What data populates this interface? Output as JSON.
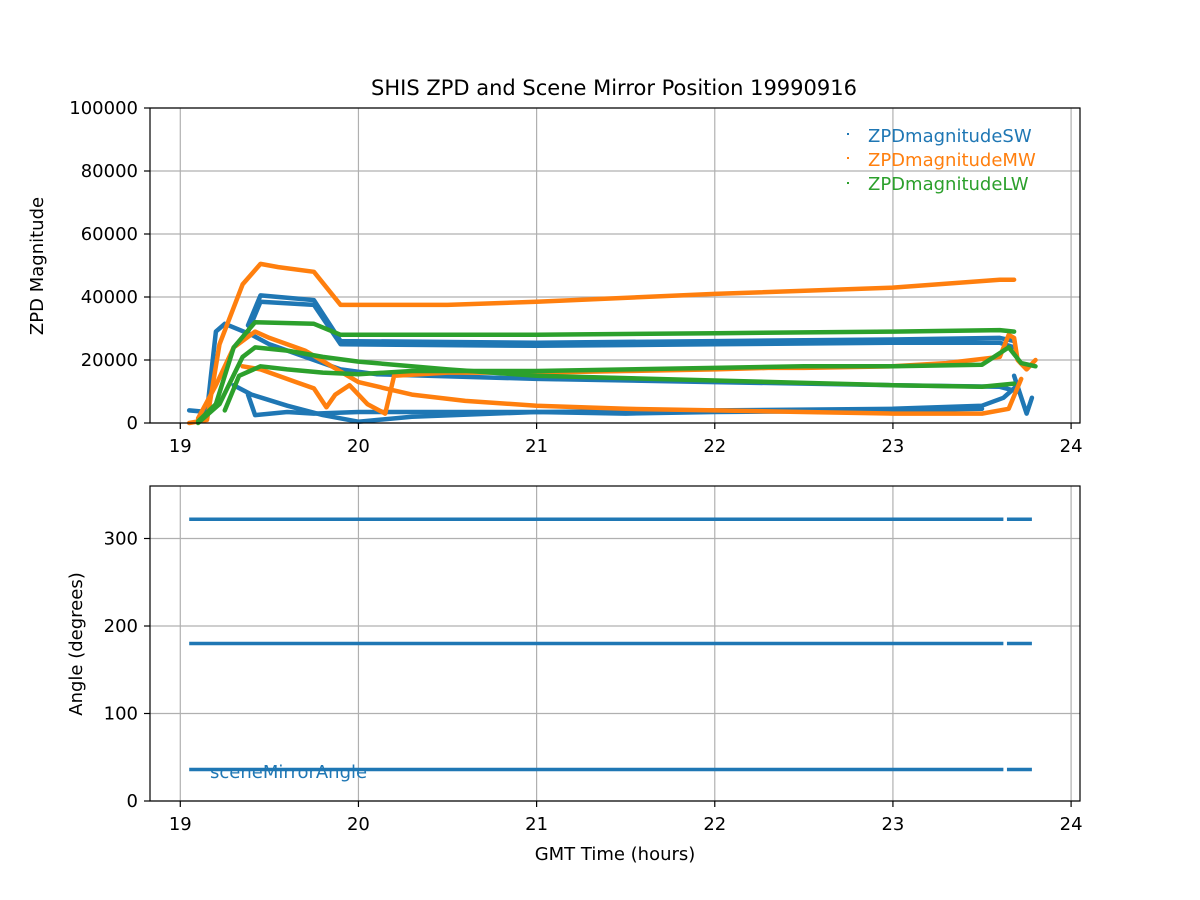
{
  "figure": {
    "title": "SHIS ZPD and Scene Mirror Position 19990916"
  },
  "colors": {
    "sw": "#1f77b4",
    "mw": "#ff7f0e",
    "lw": "#2ca02c",
    "grid": "#b0b0b0",
    "axis": "#000000"
  },
  "chart_data": [
    {
      "type": "scatter",
      "title": "SHIS ZPD and Scene Mirror Position 19990916",
      "xlabel": "",
      "ylabel": "ZPD Magnitude",
      "xlim": [
        18.83,
        24.05
      ],
      "ylim": [
        0,
        100000
      ],
      "xticks": [
        "19",
        "20",
        "21",
        "22",
        "23",
        "24"
      ],
      "yticks": [
        "0",
        "20000",
        "40000",
        "60000",
        "80000",
        "100000"
      ],
      "grid": true,
      "legend_position": "top-right",
      "series": [
        {
          "name": "ZPDmagnitudeSW",
          "color": "#1f77b4",
          "bands": [
            [
              [
                19.05,
                4000
              ],
              [
                19.15,
                3500
              ],
              [
                19.17,
                14000
              ],
              [
                19.2,
                29000
              ],
              [
                19.25,
                31500
              ],
              [
                19.4,
                28000
              ],
              [
                19.5,
                25000
              ],
              [
                19.75,
                20000
              ],
              [
                19.9,
                17000
              ],
              [
                20.1,
                15500
              ],
              [
                21.0,
                14000
              ],
              [
                22.0,
                13000
              ],
              [
                23.0,
                12000
              ],
              [
                23.6,
                11500
              ],
              [
                23.7,
                10000
              ]
            ],
            [
              [
                19.38,
                31000
              ],
              [
                19.45,
                40500
              ],
              [
                19.75,
                39000
              ],
              [
                19.9,
                26000
              ],
              [
                21.0,
                25500
              ],
              [
                22.0,
                26000
              ],
              [
                23.0,
                26500
              ],
              [
                23.6,
                27000
              ],
              [
                23.68,
                26000
              ]
            ],
            [
              [
                19.38,
                29000
              ],
              [
                19.45,
                38500
              ],
              [
                19.75,
                37500
              ],
              [
                19.9,
                25000
              ],
              [
                21.0,
                24500
              ],
              [
                22.0,
                25000
              ],
              [
                23.0,
                25500
              ],
              [
                23.6,
                25500
              ],
              [
                23.68,
                24000
              ]
            ],
            [
              [
                19.38,
                9000
              ],
              [
                19.42,
                2500
              ],
              [
                19.6,
                3500
              ],
              [
                19.75,
                3000
              ],
              [
                20.0,
                3500
              ],
              [
                21.0,
                3500
              ],
              [
                22.0,
                4000
              ],
              [
                23.0,
                4500
              ],
              [
                23.5,
                5500
              ],
              [
                23.62,
                8000
              ],
              [
                23.7,
                12000
              ]
            ],
            [
              [
                19.3,
                12000
              ],
              [
                19.4,
                9000
              ],
              [
                19.6,
                5500
              ],
              [
                19.8,
                2500
              ],
              [
                20.0,
                400
              ],
              [
                20.3,
                2000
              ],
              [
                21.0,
                3500
              ],
              [
                21.5,
                3000
              ],
              [
                22.0,
                3500
              ],
              [
                23.0,
                4000
              ],
              [
                23.5,
                4500
              ]
            ],
            [
              [
                23.68,
                15000
              ],
              [
                23.75,
                3000
              ],
              [
                23.78,
                8000
              ]
            ]
          ]
        },
        {
          "name": "ZPDmagnitudeMW",
          "color": "#ff7f0e",
          "bands": [
            [
              [
                19.05,
                0
              ],
              [
                19.15,
                1000
              ],
              [
                19.22,
                25000
              ],
              [
                19.35,
                44000
              ],
              [
                19.45,
                50500
              ],
              [
                19.55,
                49500
              ],
              [
                19.75,
                48000
              ],
              [
                19.9,
                37500
              ],
              [
                20.5,
                37500
              ],
              [
                21.0,
                38500
              ],
              [
                22.0,
                41000
              ],
              [
                23.0,
                43000
              ],
              [
                23.6,
                45500
              ],
              [
                23.68,
                45500
              ]
            ],
            [
              [
                19.1,
                1500
              ],
              [
                19.2,
                12000
              ],
              [
                19.3,
                24000
              ],
              [
                19.42,
                29000
              ],
              [
                19.5,
                27000
              ],
              [
                19.7,
                23000
              ],
              [
                19.85,
                18000
              ],
              [
                20.0,
                13000
              ],
              [
                20.3,
                9000
              ],
              [
                20.6,
                7000
              ],
              [
                21.0,
                5500
              ],
              [
                21.5,
                4500
              ],
              [
                22.0,
                4000
              ],
              [
                22.5,
                3500
              ],
              [
                23.0,
                3000
              ],
              [
                23.5,
                3000
              ],
              [
                23.65,
                4500
              ],
              [
                23.72,
                14000
              ]
            ],
            [
              [
                19.35,
                18000
              ],
              [
                19.45,
                17000
              ],
              [
                19.55,
                15000
              ],
              [
                19.65,
                13000
              ],
              [
                19.75,
                11000
              ],
              [
                19.82,
                5000
              ],
              [
                19.87,
                9000
              ],
              [
                19.95,
                12000
              ],
              [
                20.05,
                6000
              ],
              [
                20.15,
                3000
              ],
              [
                20.2,
                15000
              ],
              [
                20.5,
                16000
              ],
              [
                21.0,
                16000
              ],
              [
                21.5,
                16500
              ],
              [
                22.0,
                17000
              ],
              [
                22.3,
                17500
              ],
              [
                22.5,
                17500
              ],
              [
                23.0,
                18000
              ],
              [
                23.3,
                19000
              ],
              [
                23.6,
                21000
              ],
              [
                23.65,
                28000
              ],
              [
                23.68,
                27000
              ],
              [
                23.7,
                20000
              ],
              [
                23.75,
                17000
              ],
              [
                23.8,
                20000
              ]
            ]
          ]
        },
        {
          "name": "ZPDmagnitudeLW",
          "color": "#2ca02c",
          "bands": [
            [
              [
                19.1,
                500
              ],
              [
                19.2,
                6000
              ],
              [
                19.3,
                24000
              ],
              [
                19.42,
                32000
              ],
              [
                19.75,
                31500
              ],
              [
                19.9,
                28000
              ],
              [
                21.0,
                28000
              ],
              [
                22.0,
                28500
              ],
              [
                23.0,
                29000
              ],
              [
                23.6,
                29500
              ],
              [
                23.68,
                29000
              ]
            ],
            [
              [
                19.1,
                0
              ],
              [
                19.22,
                6000
              ],
              [
                19.35,
                21000
              ],
              [
                19.42,
                24000
              ],
              [
                19.6,
                23000
              ],
              [
                19.8,
                21000
              ],
              [
                20.0,
                19500
              ],
              [
                20.5,
                17000
              ],
              [
                21.0,
                15000
              ],
              [
                22.0,
                13500
              ],
              [
                23.0,
                12000
              ],
              [
                23.5,
                11500
              ],
              [
                23.68,
                12500
              ]
            ],
            [
              [
                19.25,
                4000
              ],
              [
                19.33,
                15000
              ],
              [
                19.45,
                18000
              ],
              [
                19.6,
                17000
              ],
              [
                19.8,
                16000
              ],
              [
                20.0,
                15500
              ],
              [
                20.3,
                16500
              ],
              [
                21.0,
                16500
              ],
              [
                22.0,
                17500
              ],
              [
                22.5,
                18000
              ],
              [
                23.0,
                18000
              ],
              [
                23.5,
                18500
              ],
              [
                23.65,
                24000
              ],
              [
                23.72,
                19000
              ],
              [
                23.8,
                18000
              ]
            ]
          ]
        }
      ]
    },
    {
      "type": "scatter",
      "title": "",
      "xlabel": "GMT Time (hours)",
      "ylabel": "Angle (degrees)",
      "xlim": [
        18.83,
        24.05
      ],
      "ylim": [
        0,
        360
      ],
      "xticks": [
        "19",
        "20",
        "21",
        "22",
        "23",
        "24"
      ],
      "yticks": [
        "0",
        "100",
        "200",
        "300"
      ],
      "grid": true,
      "legend_position": "bottom-left",
      "series": [
        {
          "name": "sceneMirrorAngle",
          "color": "#1f77b4",
          "lines": [
            {
              "y": 322,
              "x": [
                19.05,
                23.78
              ]
            },
            {
              "y": 180,
              "x": [
                19.05,
                23.78
              ]
            },
            {
              "y": 36,
              "x": [
                19.05,
                23.78
              ]
            }
          ],
          "gaps_x": [
            23.62,
            23.64
          ]
        }
      ]
    }
  ]
}
